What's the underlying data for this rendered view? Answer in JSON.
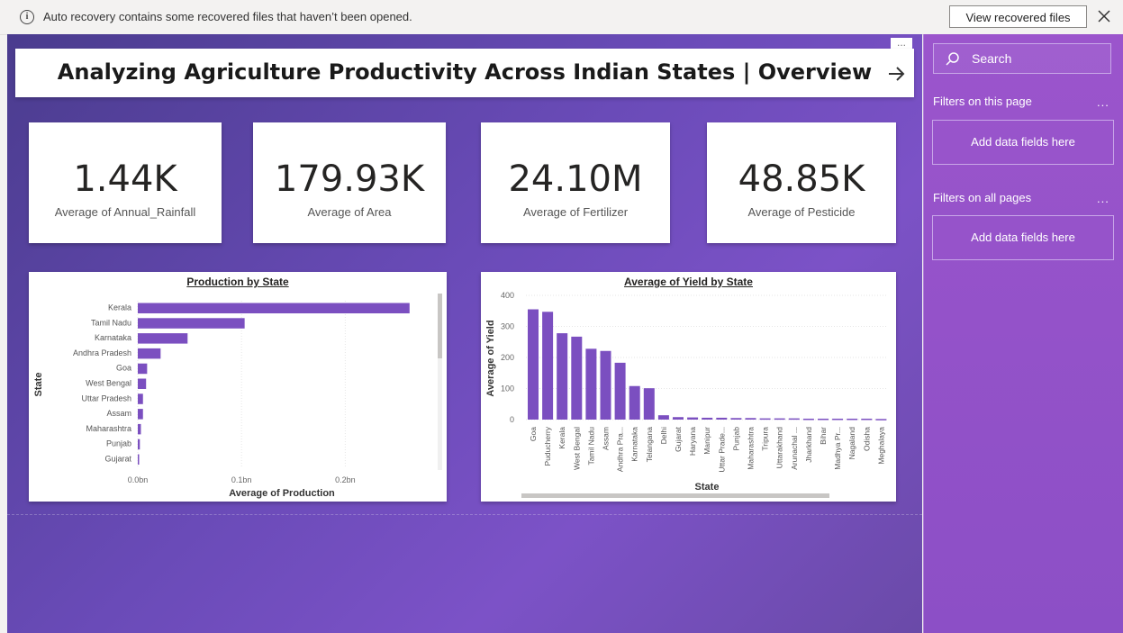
{
  "notification": {
    "message": "Auto recovery contains some recovered files that haven’t been opened.",
    "button_label": "View recovered files"
  },
  "report": {
    "title": "Analyzing Agriculture Productivity Across Indian States | Overview",
    "more_options": "...",
    "kpis": [
      {
        "value": "1.44K",
        "label": "Average of Annual_Rainfall"
      },
      {
        "value": "179.93K",
        "label": "Average of Area"
      },
      {
        "value": "24.10M",
        "label": "Average of Fertilizer"
      },
      {
        "value": "48.85K",
        "label": "Average of Pesticide"
      }
    ]
  },
  "filters_pane": {
    "search_label": "Search",
    "on_this_page": "Filters on this page",
    "on_all_pages": "Filters on all pages",
    "add_fields": "Add data fields here",
    "more": "..."
  },
  "chart_data": [
    {
      "type": "bar",
      "orientation": "horizontal",
      "title": "Production by State",
      "xlabel": "Average of Production",
      "ylabel": "State",
      "categories": [
        "Kerala",
        "Tamil Nadu",
        "Karnataka",
        "Andhra Pradesh",
        "Goa",
        "West Bengal",
        "Uttar Pradesh",
        "Assam",
        "Maharashtra",
        "Punjab",
        "Gujarat"
      ],
      "values": [
        0.262,
        0.103,
        0.048,
        0.022,
        0.009,
        0.008,
        0.005,
        0.005,
        0.003,
        0.002,
        0.001
      ],
      "xticks": [
        "0.0bn",
        "0.1bn",
        "0.2bn"
      ],
      "xlim": [
        0,
        0.27
      ],
      "color": "#7b4fc0"
    },
    {
      "type": "bar",
      "title": "Average of Yield by State",
      "xlabel": "State",
      "ylabel": "Average of Yield",
      "categories": [
        "Goa",
        "Puducherry",
        "Kerala",
        "West Bengal",
        "Tamil Nadu",
        "Assam",
        "Andhra Pra...",
        "Karnataka",
        "Telangana",
        "Delhi",
        "Gujarat",
        "Haryana",
        "Manipur",
        "Uttar Prade...",
        "Punjab",
        "Maharashtra",
        "Tripura",
        "Uttarakhand",
        "Arunachal ...",
        "Jharkhand",
        "Bihar",
        "Madhya Pr...",
        "Nagaland",
        "Odisha",
        "Meghalaya"
      ],
      "values": [
        355,
        347,
        278,
        267,
        228,
        221,
        183,
        108,
        101,
        14,
        8,
        7,
        6,
        6,
        5,
        5,
        4,
        4,
        4,
        3,
        3,
        3,
        3,
        3,
        2
      ],
      "yticks": [
        "0",
        "100",
        "200",
        "300",
        "400"
      ],
      "ylim": [
        0,
        400
      ],
      "color": "#7b4fc0"
    }
  ]
}
